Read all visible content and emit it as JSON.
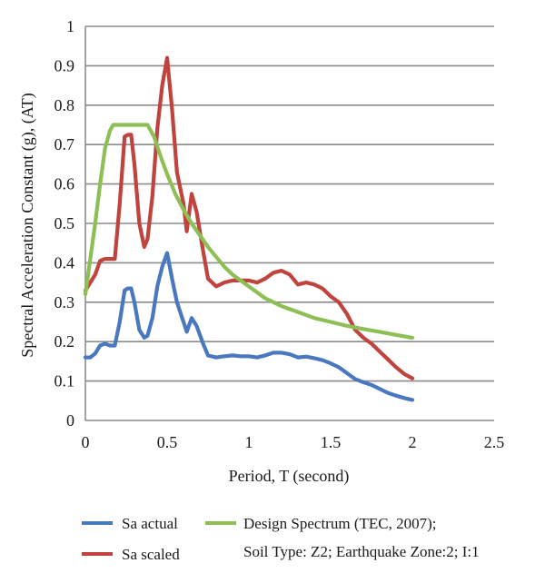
{
  "colors": {
    "gridline": "#8c8c8c",
    "axis": "#8c8c8c",
    "text": "#1a1a1a",
    "background": "#ffffff"
  },
  "chart_data": {
    "type": "line",
    "title": "",
    "xlabel": "Period, T (second)",
    "ylabel": "Spectral Acceleration Constant (g), (AT)",
    "xlim": [
      0,
      2.5
    ],
    "ylim": [
      0,
      1
    ],
    "x_ticks": [
      "0",
      "0.5",
      "1",
      "1.5",
      "2",
      "2.5"
    ],
    "y_ticks": [
      "0",
      "0.1",
      "0.2",
      "0.3",
      "0.4",
      "0.5",
      "0.6",
      "0.7",
      "0.8",
      "0.9",
      "1"
    ],
    "grid": "horizontal",
    "legend_position": "bottom",
    "legend_note": "Soil Type: Z2; Earthquake Zone:2; I:1",
    "series": [
      {
        "name": "Sa actual",
        "color": "#4a78c0",
        "x": [
          0,
          0.03,
          0.06,
          0.09,
          0.12,
          0.15,
          0.18,
          0.21,
          0.24,
          0.26,
          0.28,
          0.3,
          0.33,
          0.36,
          0.38,
          0.41,
          0.44,
          0.47,
          0.5,
          0.53,
          0.56,
          0.6,
          0.62,
          0.65,
          0.68,
          0.72,
          0.75,
          0.8,
          0.85,
          0.9,
          0.95,
          1.0,
          1.05,
          1.1,
          1.15,
          1.2,
          1.25,
          1.3,
          1.35,
          1.4,
          1.45,
          1.5,
          1.55,
          1.6,
          1.65,
          1.7,
          1.75,
          1.8,
          1.85,
          1.9,
          1.95,
          2.0
        ],
        "values": [
          0.16,
          0.16,
          0.17,
          0.19,
          0.195,
          0.19,
          0.19,
          0.25,
          0.33,
          0.335,
          0.335,
          0.3,
          0.23,
          0.21,
          0.215,
          0.26,
          0.34,
          0.39,
          0.425,
          0.36,
          0.3,
          0.25,
          0.225,
          0.26,
          0.24,
          0.195,
          0.165,
          0.16,
          0.163,
          0.165,
          0.163,
          0.163,
          0.16,
          0.165,
          0.172,
          0.172,
          0.168,
          0.16,
          0.162,
          0.158,
          0.153,
          0.145,
          0.135,
          0.12,
          0.105,
          0.097,
          0.09,
          0.08,
          0.07,
          0.063,
          0.057,
          0.052
        ]
      },
      {
        "name": "Sa scaled",
        "color": "#c0433e",
        "x": [
          0,
          0.03,
          0.06,
          0.09,
          0.12,
          0.15,
          0.18,
          0.21,
          0.24,
          0.26,
          0.28,
          0.3,
          0.33,
          0.36,
          0.38,
          0.41,
          0.44,
          0.47,
          0.5,
          0.53,
          0.56,
          0.6,
          0.62,
          0.65,
          0.68,
          0.72,
          0.75,
          0.8,
          0.85,
          0.9,
          0.95,
          1.0,
          1.05,
          1.1,
          1.15,
          1.2,
          1.25,
          1.3,
          1.35,
          1.4,
          1.45,
          1.5,
          1.55,
          1.6,
          1.65,
          1.7,
          1.75,
          1.8,
          1.85,
          1.9,
          1.95,
          2.0
        ],
        "values": [
          0.33,
          0.35,
          0.37,
          0.405,
          0.41,
          0.41,
          0.41,
          0.55,
          0.72,
          0.725,
          0.725,
          0.65,
          0.5,
          0.44,
          0.46,
          0.57,
          0.74,
          0.85,
          0.92,
          0.79,
          0.63,
          0.55,
          0.48,
          0.575,
          0.53,
          0.43,
          0.36,
          0.34,
          0.35,
          0.355,
          0.355,
          0.355,
          0.35,
          0.36,
          0.375,
          0.38,
          0.37,
          0.345,
          0.35,
          0.345,
          0.335,
          0.315,
          0.3,
          0.27,
          0.23,
          0.21,
          0.195,
          0.175,
          0.155,
          0.135,
          0.118,
          0.107
        ]
      },
      {
        "name": "Design Spectrum (TEC, 2007);",
        "color": "#8dbf54",
        "x": [
          0,
          0.03,
          0.06,
          0.09,
          0.12,
          0.15,
          0.17,
          0.2,
          0.25,
          0.3,
          0.35,
          0.38,
          0.42,
          0.46,
          0.5,
          0.55,
          0.6,
          0.65,
          0.7,
          0.75,
          0.8,
          0.85,
          0.9,
          0.95,
          1.0,
          1.05,
          1.1,
          1.15,
          1.2,
          1.3,
          1.4,
          1.5,
          1.6,
          1.7,
          1.8,
          1.9,
          2.0
        ],
        "values": [
          0.32,
          0.41,
          0.5,
          0.6,
          0.69,
          0.735,
          0.75,
          0.75,
          0.75,
          0.75,
          0.75,
          0.75,
          0.72,
          0.67,
          0.625,
          0.575,
          0.535,
          0.5,
          0.47,
          0.44,
          0.415,
          0.39,
          0.37,
          0.355,
          0.34,
          0.325,
          0.31,
          0.3,
          0.29,
          0.275,
          0.26,
          0.25,
          0.24,
          0.232,
          0.225,
          0.217,
          0.21
        ]
      }
    ]
  }
}
